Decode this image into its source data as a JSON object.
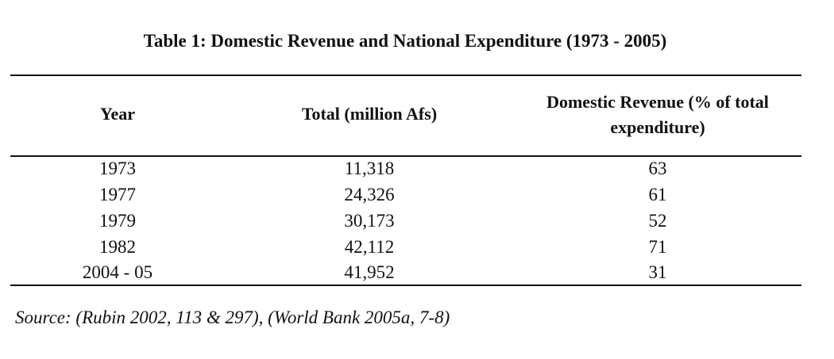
{
  "table": {
    "caption": "Table 1: Domestic Revenue and National Expenditure (1973 - 2005)",
    "headers": {
      "year": "Year",
      "total": "Total (million Afs)",
      "domestic_line1": "Domestic Revenue (% of total",
      "domestic_line2": "expenditure)"
    },
    "rows": [
      {
        "year": "1973",
        "total": "11,318",
        "domestic": "63"
      },
      {
        "year": "1977",
        "total": "24,326",
        "domestic": "61"
      },
      {
        "year": "1979",
        "total": "30,173",
        "domestic": "52"
      },
      {
        "year": "1982",
        "total": "42,112",
        "domestic": "71"
      },
      {
        "year": "2004 - 05",
        "total": "41,952",
        "domestic": "31"
      }
    ],
    "source": "Source: (Rubin 2002, 113 & 297), (World Bank 2005a, 7-8)"
  }
}
